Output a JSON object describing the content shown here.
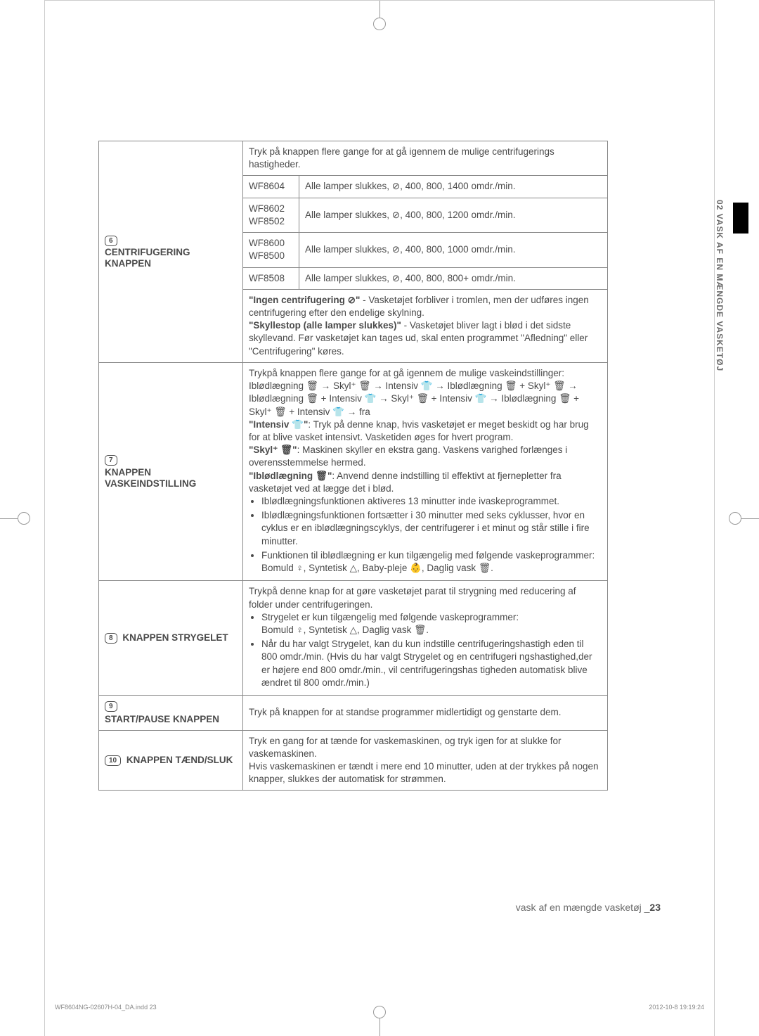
{
  "sideTab": "02  VASK AF EN MÆNGDE VASKETØJ",
  "rows": {
    "r6": {
      "num": "6",
      "title": "CENTRIFUGERING KNAPPEN",
      "intro": "Tryk på knappen flere gange for at gå igennem de mulige centrifugerings hastigheder.",
      "models": [
        {
          "m": "WF8604",
          "d": "Alle lamper slukkes, ⊘, 400, 800, 1400 omdr./min."
        },
        {
          "m": "WF8602\nWF8502",
          "d": "Alle lamper slukkes, ⊘, 400, 800, 1200 omdr./min."
        },
        {
          "m": "WF8600\nWF8500",
          "d": "Alle lamper slukkes, ⊘, 400, 800, 1000 omdr./min."
        },
        {
          "m": "WF8508",
          "d": "Alle lamper slukkes, ⊘, 400, 800, 800+ omdr./min."
        }
      ],
      "note": "\"Ingen centrifugering ⊘\" - Vasketøjet forbliver i tromlen, men der udføres ingen centrifugering efter den endelige skylning.\n\"Skyllestop (alle lamper slukkes)\" - Vasketøjet bliver lagt i blød i det sidste skyllevand. Før vasketøjet kan tages ud, skal enten programmet \"Afledning\" eller \"Centrifugering\" køres.",
      "noteBold1": "\"Ingen centrifugering ⊘\"",
      "noteRest1": " - Vasketøjet forbliver i tromlen, men der udføres ingen centrifugering efter den endelige skylning.",
      "noteBold2": "\"Skyllestop (alle lamper slukkes)\"",
      "noteRest2": " - Vasketøjet bliver lagt i blød i det sidste skyllevand. Før vasketøjet kan tages ud, skal enten programmet \"Afledning\" eller \"Centrifugering\" køres."
    },
    "r7": {
      "num": "7",
      "title": "KNAPPEN VASKEINDSTILLING",
      "intro": "Trykpå knappen flere gange for at gå igennem de mulige vaskeindstillinger:",
      "seq": "Iblødlægning 🗑 → Skyl⁺ 🗑 → Intensiv 👕 → Iblødlægning 🗑 + Skyl⁺ 🗑 → Iblødlægning 🗑 + Intensiv 👕 → Skyl⁺ 🗑 + Intensiv 👕 → Iblødlægning 🗑 + Skyl⁺ 🗑 + Intensiv 👕 → fra",
      "p1b": "\"Intensiv 👕\"",
      "p1": ": Tryk på denne knap, hvis vasketøjet er meget beskidt og har brug for at blive vasket intensivt. Vasketiden øges for hvert program.",
      "p2b": "\"Skyl⁺ 🗑\"",
      "p2": ": Maskinen skyller en ekstra gang. Vaskens varighed forlænges i overensstemmelse hermed.",
      "p3b": "\"Iblødlægning 🗑\"",
      "p3": ": Anvend denne indstilling til effektivt at fjernepletter fra vasketøjet ved at lægge det i blød.",
      "b1": "Iblødlægningsfunktionen aktiveres 13 minutter inde ivaskeprogrammet.",
      "b2": "Iblødlægningsfunktionen fortsætter i 30 minutter med seks cyklusser, hvor en cyklus er en iblødlægningscyklys, der centrifugerer i et minut og står stille i fire minutter.",
      "b3a": "Funktionen til iblødlægning er kun tilgængelig med følgende vaskeprogrammer:",
      "b3b": "Bomuld ♀, Syntetisk △, Baby-pleje 👶, Daglig vask 🗑."
    },
    "r8": {
      "num": "8",
      "title": "KNAPPEN STRYGELET",
      "intro": "Trykpå denne knap for at gøre vasketøjet parat til strygning med reducering af folder under centrifugeringen.",
      "b1a": "Strygelet er kun tilgængelig med følgende vaskeprogrammer:",
      "b1b": "Bomuld ♀, Syntetisk △, Daglig vask 🗑.",
      "b2": "Når du har valgt Strygelet, kan du kun indstille centrifugeringshastigh eden til 800 omdr./min. (Hvis du har valgt Strygelet og en centrifugeri ngshastighed,der er højere end 800 omdr./min., vil centrifugeringshas tigheden automatisk blive ændret til 800 omdr./min.)"
    },
    "r9": {
      "num": "9",
      "title": "START/PAUSE KNAPPEN",
      "text": "Tryk på knappen for at standse programmer midlertidigt og genstarte dem."
    },
    "r10": {
      "num": "10",
      "title": "KNAPPEN TÆND/SLUK",
      "text": "Tryk en gang for at tænde for vaskemaskinen, og tryk igen for at slukke for vaskemaskinen.\nHvis vaskemaskinen er tændt i mere end 10 minutter, uden at der trykkes på nogen knapper, slukkes der automatisk for strømmen."
    }
  },
  "footer": {
    "pageLabel": "vask af en mængde vasketøj _",
    "pageNum": "23",
    "leftFoot": "WF8604NG-02607H-04_DA.indd   23",
    "rightFoot": "2012-10-8   19:19:24"
  }
}
